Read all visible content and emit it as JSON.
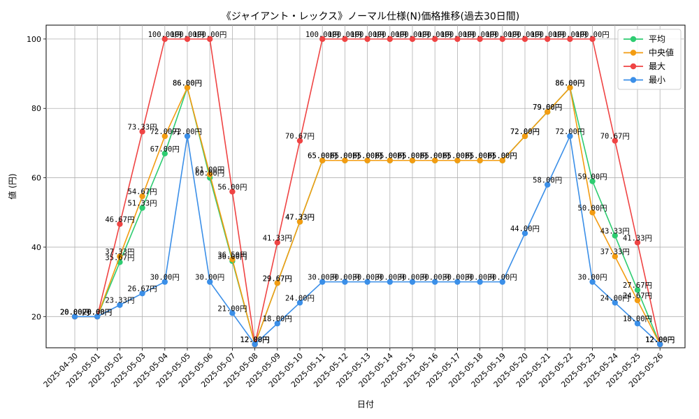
{
  "chart_data": {
    "type": "line",
    "title": "《ジャイアント・レックス》ノーマル仕様(N)価格推移(過去30日間)",
    "xlabel": "日付",
    "ylabel": "値 (円)",
    "ylim": [
      11,
      104
    ],
    "yticks": [
      20,
      40,
      60,
      80,
      100
    ],
    "grid": true,
    "legend_position": "top-right",
    "value_suffix": "円",
    "categories": [
      "2025-04-30",
      "2025-05-01",
      "2025-05-02",
      "2025-05-03",
      "2025-05-04",
      "2025-05-05",
      "2025-05-06",
      "2025-05-07",
      "2025-05-08",
      "2025-05-09",
      "2025-05-10",
      "2025-05-11",
      "2025-05-12",
      "2025-05-13",
      "2025-05-14",
      "2025-05-15",
      "2025-05-16",
      "2025-05-17",
      "2025-05-18",
      "2025-05-19",
      "2025-05-20",
      "2025-05-21",
      "2025-05-22",
      "2025-05-23",
      "2025-05-24",
      "2025-05-25",
      "2025-05-26"
    ],
    "series": [
      {
        "name": "平均",
        "color": "#2ecc71",
        "values": [
          20,
          20,
          35.67,
          51.33,
          67,
          86,
          60,
          36,
          12,
          29.67,
          47.33,
          65,
          65,
          65,
          65,
          65,
          65,
          65,
          65,
          65,
          72,
          79,
          86,
          59,
          43.33,
          27.67,
          12
        ]
      },
      {
        "name": "中央値",
        "color": "#f39c12",
        "values": [
          20,
          20,
          37.33,
          54.67,
          72,
          86,
          61,
          36.5,
          12,
          29.67,
          47.33,
          65,
          65,
          65,
          65,
          65,
          65,
          65,
          65,
          65,
          72,
          79,
          86,
          50,
          37.33,
          24.67,
          12
        ]
      },
      {
        "name": "最大",
        "color": "#ef4444",
        "values": [
          20,
          20,
          46.67,
          73.33,
          100,
          100,
          100,
          56,
          12,
          41.33,
          70.67,
          100,
          100,
          100,
          100,
          100,
          100,
          100,
          100,
          100,
          100,
          100,
          100,
          100,
          70.67,
          41.33,
          12
        ]
      },
      {
        "name": "最小",
        "color": "#3b8fe8",
        "values": [
          20,
          20,
          23.33,
          26.67,
          30,
          72,
          30,
          21,
          12,
          18,
          24,
          30,
          30,
          30,
          30,
          30,
          30,
          30,
          30,
          30,
          44,
          58,
          72,
          30,
          24,
          18,
          12
        ]
      }
    ]
  }
}
